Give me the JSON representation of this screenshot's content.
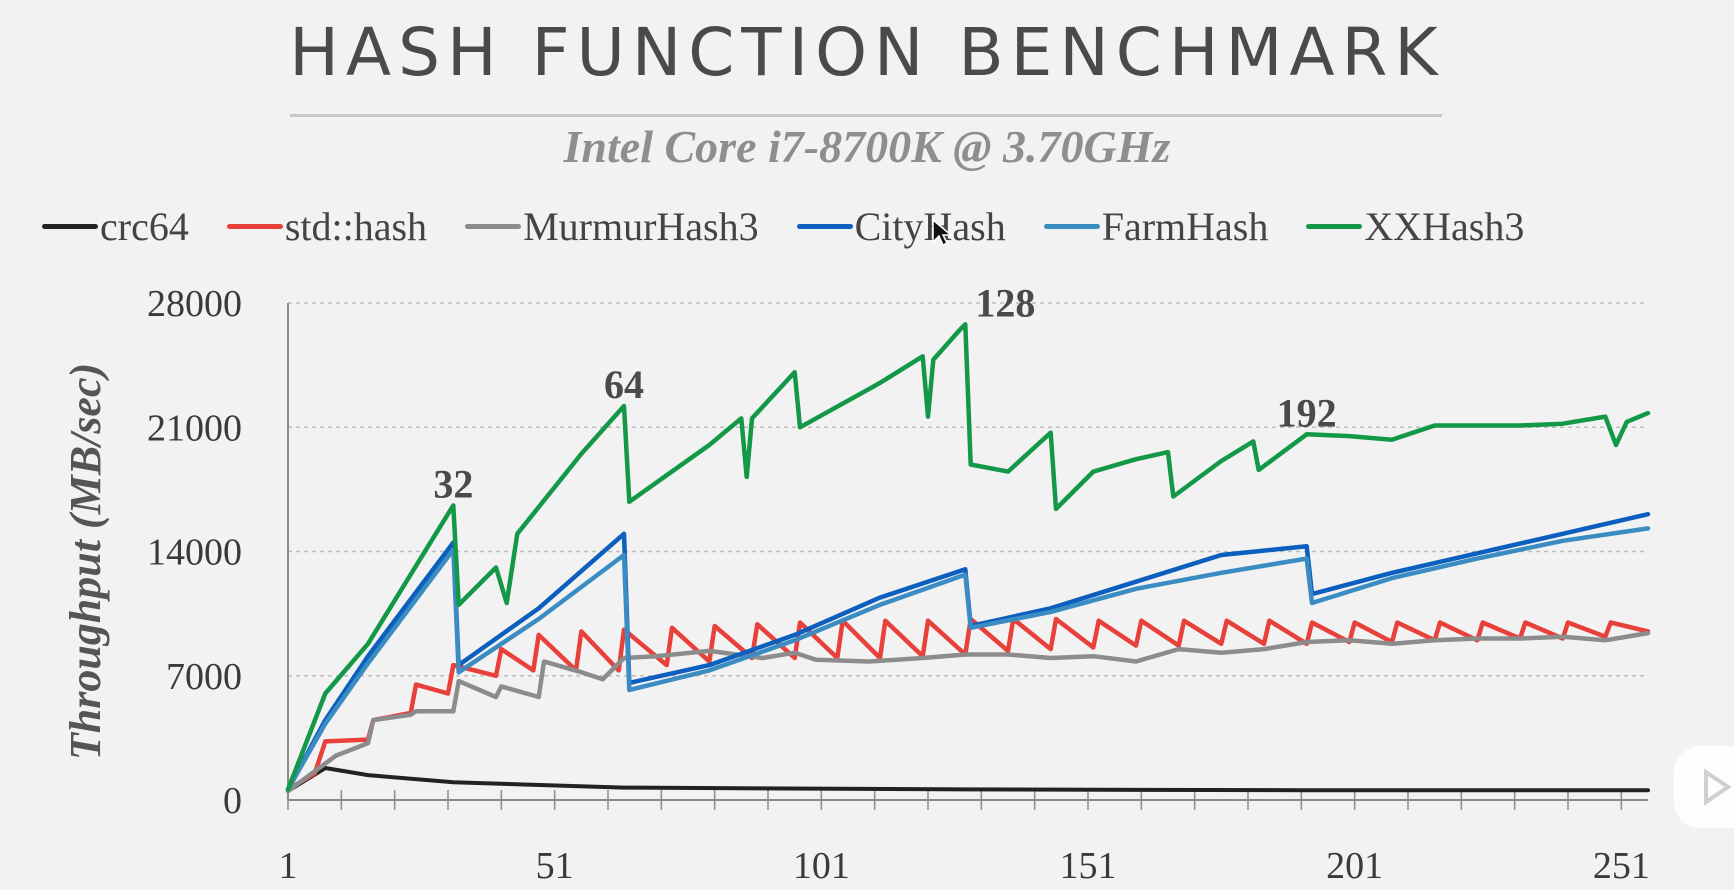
{
  "header": {
    "title": "HASH FUNCTION BENCHMARK",
    "subtitle": "Intel Core i7-8700K @ 3.70GHz"
  },
  "legend": [
    {
      "name": "crc64",
      "color": "#222222"
    },
    {
      "name": "std::hash",
      "color": "#e8403a"
    },
    {
      "name": "MurmurHash3",
      "color": "#8c8c8c"
    },
    {
      "name": "CityHash",
      "color": "#0c5fbe"
    },
    {
      "name": "FarmHash",
      "color": "#3a8cc2"
    },
    {
      "name": "XXHash3",
      "color": "#139848"
    }
  ],
  "chart_data": {
    "type": "line",
    "title": "HASH FUNCTION BENCHMARK",
    "subtitle": "Intel Core i7-8700K @ 3.70GHz",
    "xlabel": "",
    "ylabel": "Throughput (MB/sec)",
    "xlim": [
      1,
      256
    ],
    "ylim": [
      0,
      28000
    ],
    "xticks": [
      "1",
      "51",
      "101",
      "151",
      "201",
      "251"
    ],
    "yticks": [
      "0",
      "7000",
      "14000",
      "21000",
      "28000"
    ],
    "grid": "horizontal-dashed",
    "legend_position": "top",
    "annotations": [
      {
        "text": "32",
        "x": 32,
        "y": 16600
      },
      {
        "text": "64",
        "x": 64,
        "y": 22200
      },
      {
        "text": "128",
        "x": 128,
        "y": 26800
      },
      {
        "text": "192",
        "x": 192,
        "y": 20600
      }
    ],
    "series": [
      {
        "name": "crc64",
        "color": "#222222",
        "points": [
          [
            1,
            500
          ],
          [
            8,
            1800
          ],
          [
            16,
            1400
          ],
          [
            32,
            1000
          ],
          [
            64,
            700
          ],
          [
            128,
            600
          ],
          [
            192,
            550
          ],
          [
            256,
            550
          ]
        ]
      },
      {
        "name": "std::hash",
        "color": "#e8403a",
        "points": [
          [
            1,
            600
          ],
          [
            6,
            1500
          ],
          [
            8,
            3300
          ],
          [
            16,
            3400
          ],
          [
            17,
            4500
          ],
          [
            24,
            4900
          ],
          [
            25,
            6500
          ],
          [
            31,
            6000
          ],
          [
            32,
            7600
          ],
          [
            40,
            7000
          ],
          [
            41,
            8500
          ],
          [
            47,
            7300
          ],
          [
            48,
            9300
          ],
          [
            55,
            7300
          ],
          [
            56,
            9500
          ],
          [
            63,
            7300
          ],
          [
            64,
            9600
          ],
          [
            72,
            7600
          ],
          [
            73,
            9700
          ],
          [
            80,
            7800
          ],
          [
            81,
            9800
          ],
          [
            88,
            8000
          ],
          [
            89,
            9900
          ],
          [
            96,
            8000
          ],
          [
            97,
            10000
          ],
          [
            104,
            8000
          ],
          [
            105,
            10100
          ],
          [
            112,
            8000
          ],
          [
            113,
            10100
          ],
          [
            120,
            8100
          ],
          [
            121,
            10100
          ],
          [
            128,
            8200
          ],
          [
            129,
            10200
          ],
          [
            136,
            8400
          ],
          [
            137,
            10200
          ],
          [
            144,
            8500
          ],
          [
            145,
            10200
          ],
          [
            152,
            8600
          ],
          [
            153,
            10100
          ],
          [
            160,
            8700
          ],
          [
            161,
            10100
          ],
          [
            168,
            8700
          ],
          [
            169,
            10100
          ],
          [
            176,
            8800
          ],
          [
            177,
            10100
          ],
          [
            184,
            8800
          ],
          [
            185,
            10100
          ],
          [
            192,
            8800
          ],
          [
            193,
            10000
          ],
          [
            200,
            8900
          ],
          [
            201,
            10000
          ],
          [
            208,
            8900
          ],
          [
            209,
            10000
          ],
          [
            216,
            9000
          ],
          [
            217,
            10000
          ],
          [
            224,
            9000
          ],
          [
            225,
            10000
          ],
          [
            232,
            9100
          ],
          [
            233,
            10000
          ],
          [
            240,
            9100
          ],
          [
            241,
            10000
          ],
          [
            248,
            9200
          ],
          [
            249,
            10000
          ],
          [
            256,
            9500
          ]
        ]
      },
      {
        "name": "MurmurHash3",
        "color": "#8c8c8c",
        "points": [
          [
            1,
            500
          ],
          [
            10,
            2500
          ],
          [
            16,
            3200
          ],
          [
            17,
            4500
          ],
          [
            24,
            4800
          ],
          [
            25,
            5000
          ],
          [
            32,
            5000
          ],
          [
            33,
            6700
          ],
          [
            40,
            5800
          ],
          [
            41,
            6400
          ],
          [
            48,
            5800
          ],
          [
            49,
            7800
          ],
          [
            56,
            7200
          ],
          [
            60,
            6800
          ],
          [
            64,
            8000
          ],
          [
            70,
            8100
          ],
          [
            80,
            8400
          ],
          [
            90,
            8000
          ],
          [
            96,
            8300
          ],
          [
            100,
            7900
          ],
          [
            110,
            7800
          ],
          [
            120,
            8000
          ],
          [
            128,
            8200
          ],
          [
            136,
            8200
          ],
          [
            144,
            8000
          ],
          [
            152,
            8100
          ],
          [
            160,
            7800
          ],
          [
            168,
            8500
          ],
          [
            176,
            8300
          ],
          [
            184,
            8500
          ],
          [
            192,
            8900
          ],
          [
            200,
            9000
          ],
          [
            208,
            8800
          ],
          [
            216,
            9000
          ],
          [
            224,
            9100
          ],
          [
            232,
            9100
          ],
          [
            240,
            9200
          ],
          [
            248,
            9000
          ],
          [
            256,
            9400
          ]
        ]
      },
      {
        "name": "CityHash",
        "color": "#0c5fbe",
        "points": [
          [
            1,
            600
          ],
          [
            8,
            4500
          ],
          [
            16,
            8100
          ],
          [
            32,
            14500
          ],
          [
            33,
            7600
          ],
          [
            48,
            10800
          ],
          [
            64,
            15000
          ],
          [
            65,
            6600
          ],
          [
            80,
            7600
          ],
          [
            96,
            9300
          ],
          [
            112,
            11400
          ],
          [
            128,
            13000
          ],
          [
            129,
            9800
          ],
          [
            144,
            10800
          ],
          [
            160,
            12300
          ],
          [
            176,
            13800
          ],
          [
            192,
            14300
          ],
          [
            193,
            11600
          ],
          [
            208,
            12800
          ],
          [
            224,
            13900
          ],
          [
            240,
            15000
          ],
          [
            256,
            16100
          ]
        ]
      },
      {
        "name": "FarmHash",
        "color": "#3a8cc2",
        "points": [
          [
            1,
            600
          ],
          [
            8,
            4300
          ],
          [
            16,
            7700
          ],
          [
            32,
            14100
          ],
          [
            33,
            7200
          ],
          [
            48,
            10200
          ],
          [
            64,
            13800
          ],
          [
            65,
            6200
          ],
          [
            80,
            7300
          ],
          [
            96,
            9000
          ],
          [
            112,
            11000
          ],
          [
            128,
            12700
          ],
          [
            129,
            9700
          ],
          [
            144,
            10600
          ],
          [
            160,
            11900
          ],
          [
            176,
            12800
          ],
          [
            192,
            13600
          ],
          [
            193,
            11100
          ],
          [
            208,
            12500
          ],
          [
            224,
            13600
          ],
          [
            240,
            14600
          ],
          [
            256,
            15300
          ]
        ]
      },
      {
        "name": "XXHash3",
        "color": "#139848",
        "points": [
          [
            1,
            600
          ],
          [
            8,
            6000
          ],
          [
            16,
            8800
          ],
          [
            32,
            16600
          ],
          [
            33,
            11000
          ],
          [
            40,
            13100
          ],
          [
            42,
            11100
          ],
          [
            44,
            15000
          ],
          [
            56,
            19500
          ],
          [
            64,
            22200
          ],
          [
            65,
            16800
          ],
          [
            80,
            20000
          ],
          [
            86,
            21500
          ],
          [
            87,
            18200
          ],
          [
            88,
            21500
          ],
          [
            96,
            24100
          ],
          [
            97,
            21000
          ],
          [
            112,
            23500
          ],
          [
            120,
            25000
          ],
          [
            121,
            21600
          ],
          [
            122,
            24800
          ],
          [
            127,
            26500
          ],
          [
            128,
            26800
          ],
          [
            129,
            18900
          ],
          [
            136,
            18500
          ],
          [
            144,
            20700
          ],
          [
            145,
            16400
          ],
          [
            152,
            18500
          ],
          [
            160,
            19200
          ],
          [
            166,
            19600
          ],
          [
            167,
            17100
          ],
          [
            176,
            19100
          ],
          [
            182,
            20200
          ],
          [
            183,
            18600
          ],
          [
            192,
            20600
          ],
          [
            200,
            20500
          ],
          [
            208,
            20300
          ],
          [
            216,
            21100
          ],
          [
            224,
            21100
          ],
          [
            232,
            21100
          ],
          [
            240,
            21200
          ],
          [
            248,
            21600
          ],
          [
            250,
            20000
          ],
          [
            252,
            21300
          ],
          [
            256,
            21800
          ]
        ]
      }
    ]
  }
}
